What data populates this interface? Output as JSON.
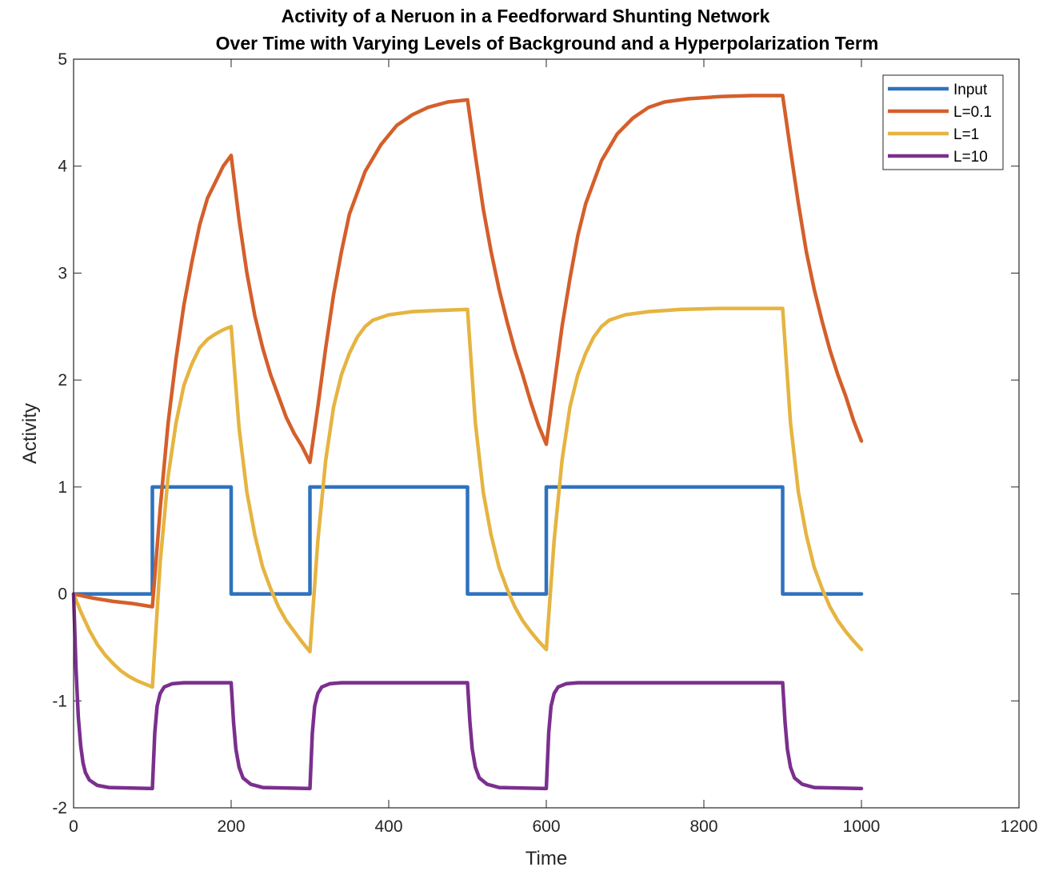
{
  "chart_data": {
    "type": "line",
    "title": "Activity of a Neruon in a Feedforward Shunting Network",
    "subtitle": "Over Time with Varying Levels of Background and a Hyperpolarization Term",
    "xlabel": "Time",
    "ylabel": "Activity",
    "xlim": [
      0,
      1200
    ],
    "ylim": [
      -2,
      5
    ],
    "xticks": [
      0,
      200,
      400,
      600,
      800,
      1000,
      1200
    ],
    "yticks": [
      -2,
      -1,
      0,
      1,
      2,
      3,
      4,
      5
    ],
    "grid": false,
    "legend_position": "top-right",
    "series": [
      {
        "name": "Input",
        "color": "#2e72be",
        "points": [
          [
            0,
            0
          ],
          [
            100,
            0
          ],
          [
            100,
            1
          ],
          [
            200,
            1
          ],
          [
            200,
            0
          ],
          [
            300,
            0
          ],
          [
            300,
            1
          ],
          [
            500,
            1
          ],
          [
            500,
            0
          ],
          [
            600,
            0
          ],
          [
            600,
            1
          ],
          [
            900,
            1
          ],
          [
            900,
            0
          ],
          [
            1000,
            0
          ]
        ]
      },
      {
        "name": "L=0.1",
        "color": "#d45f2b",
        "points": [
          [
            0,
            0
          ],
          [
            25,
            -0.04
          ],
          [
            50,
            -0.07
          ],
          [
            75,
            -0.09
          ],
          [
            100,
            -0.12
          ],
          [
            110,
            0.8
          ],
          [
            120,
            1.6
          ],
          [
            130,
            2.2
          ],
          [
            140,
            2.7
          ],
          [
            150,
            3.1
          ],
          [
            160,
            3.45
          ],
          [
            170,
            3.7
          ],
          [
            180,
            3.85
          ],
          [
            190,
            4.0
          ],
          [
            200,
            4.1
          ],
          [
            210,
            3.5
          ],
          [
            220,
            3.0
          ],
          [
            230,
            2.6
          ],
          [
            240,
            2.3
          ],
          [
            250,
            2.05
          ],
          [
            260,
            1.85
          ],
          [
            270,
            1.65
          ],
          [
            280,
            1.5
          ],
          [
            290,
            1.38
          ],
          [
            300,
            1.23
          ],
          [
            310,
            1.75
          ],
          [
            320,
            2.3
          ],
          [
            330,
            2.8
          ],
          [
            340,
            3.2
          ],
          [
            350,
            3.55
          ],
          [
            370,
            3.95
          ],
          [
            390,
            4.2
          ],
          [
            410,
            4.38
          ],
          [
            430,
            4.48
          ],
          [
            450,
            4.55
          ],
          [
            475,
            4.6
          ],
          [
            500,
            4.62
          ],
          [
            510,
            4.1
          ],
          [
            520,
            3.6
          ],
          [
            530,
            3.2
          ],
          [
            540,
            2.85
          ],
          [
            550,
            2.55
          ],
          [
            560,
            2.28
          ],
          [
            570,
            2.05
          ],
          [
            580,
            1.8
          ],
          [
            590,
            1.58
          ],
          [
            600,
            1.4
          ],
          [
            610,
            1.95
          ],
          [
            620,
            2.5
          ],
          [
            630,
            2.95
          ],
          [
            640,
            3.35
          ],
          [
            650,
            3.65
          ],
          [
            670,
            4.05
          ],
          [
            690,
            4.3
          ],
          [
            710,
            4.45
          ],
          [
            730,
            4.55
          ],
          [
            750,
            4.6
          ],
          [
            780,
            4.63
          ],
          [
            820,
            4.65
          ],
          [
            860,
            4.66
          ],
          [
            900,
            4.66
          ],
          [
            910,
            4.15
          ],
          [
            920,
            3.65
          ],
          [
            930,
            3.2
          ],
          [
            940,
            2.85
          ],
          [
            950,
            2.55
          ],
          [
            960,
            2.28
          ],
          [
            970,
            2.05
          ],
          [
            980,
            1.85
          ],
          [
            990,
            1.62
          ],
          [
            1000,
            1.43
          ]
        ]
      },
      {
        "name": "L=1",
        "color": "#e5b441",
        "points": [
          [
            0,
            0
          ],
          [
            10,
            -0.18
          ],
          [
            20,
            -0.34
          ],
          [
            30,
            -0.47
          ],
          [
            40,
            -0.57
          ],
          [
            50,
            -0.65
          ],
          [
            60,
            -0.72
          ],
          [
            70,
            -0.77
          ],
          [
            80,
            -0.81
          ],
          [
            90,
            -0.84
          ],
          [
            100,
            -0.87
          ],
          [
            110,
            0.3
          ],
          [
            120,
            1.1
          ],
          [
            130,
            1.6
          ],
          [
            140,
            1.95
          ],
          [
            150,
            2.15
          ],
          [
            160,
            2.3
          ],
          [
            170,
            2.38
          ],
          [
            180,
            2.43
          ],
          [
            190,
            2.47
          ],
          [
            200,
            2.5
          ],
          [
            210,
            1.55
          ],
          [
            220,
            0.95
          ],
          [
            230,
            0.55
          ],
          [
            240,
            0.25
          ],
          [
            250,
            0.05
          ],
          [
            260,
            -0.12
          ],
          [
            270,
            -0.25
          ],
          [
            280,
            -0.35
          ],
          [
            290,
            -0.45
          ],
          [
            300,
            -0.54
          ],
          [
            310,
            0.5
          ],
          [
            320,
            1.25
          ],
          [
            330,
            1.75
          ],
          [
            340,
            2.05
          ],
          [
            350,
            2.25
          ],
          [
            360,
            2.4
          ],
          [
            370,
            2.5
          ],
          [
            380,
            2.56
          ],
          [
            400,
            2.61
          ],
          [
            430,
            2.64
          ],
          [
            460,
            2.65
          ],
          [
            500,
            2.66
          ],
          [
            510,
            1.6
          ],
          [
            520,
            0.95
          ],
          [
            530,
            0.55
          ],
          [
            540,
            0.25
          ],
          [
            550,
            0.05
          ],
          [
            560,
            -0.12
          ],
          [
            570,
            -0.25
          ],
          [
            580,
            -0.35
          ],
          [
            590,
            -0.44
          ],
          [
            600,
            -0.52
          ],
          [
            610,
            0.5
          ],
          [
            620,
            1.25
          ],
          [
            630,
            1.75
          ],
          [
            640,
            2.05
          ],
          [
            650,
            2.25
          ],
          [
            660,
            2.4
          ],
          [
            670,
            2.5
          ],
          [
            680,
            2.56
          ],
          [
            700,
            2.61
          ],
          [
            730,
            2.64
          ],
          [
            770,
            2.66
          ],
          [
            820,
            2.67
          ],
          [
            900,
            2.67
          ],
          [
            910,
            1.6
          ],
          [
            920,
            0.95
          ],
          [
            930,
            0.55
          ],
          [
            940,
            0.25
          ],
          [
            950,
            0.05
          ],
          [
            960,
            -0.12
          ],
          [
            970,
            -0.25
          ],
          [
            980,
            -0.35
          ],
          [
            990,
            -0.44
          ],
          [
            1000,
            -0.52
          ]
        ]
      },
      {
        "name": "L=10",
        "color": "#7b2f8e",
        "points": [
          [
            0,
            0
          ],
          [
            3,
            -0.7
          ],
          [
            6,
            -1.15
          ],
          [
            9,
            -1.42
          ],
          [
            12,
            -1.58
          ],
          [
            15,
            -1.67
          ],
          [
            20,
            -1.74
          ],
          [
            30,
            -1.79
          ],
          [
            45,
            -1.81
          ],
          [
            100,
            -1.82
          ],
          [
            103,
            -1.3
          ],
          [
            106,
            -1.05
          ],
          [
            110,
            -0.93
          ],
          [
            115,
            -0.87
          ],
          [
            125,
            -0.84
          ],
          [
            140,
            -0.83
          ],
          [
            200,
            -0.83
          ],
          [
            203,
            -1.2
          ],
          [
            206,
            -1.45
          ],
          [
            210,
            -1.62
          ],
          [
            215,
            -1.72
          ],
          [
            225,
            -1.78
          ],
          [
            240,
            -1.81
          ],
          [
            300,
            -1.82
          ],
          [
            303,
            -1.3
          ],
          [
            306,
            -1.05
          ],
          [
            310,
            -0.93
          ],
          [
            315,
            -0.87
          ],
          [
            325,
            -0.84
          ],
          [
            340,
            -0.83
          ],
          [
            500,
            -0.83
          ],
          [
            503,
            -1.2
          ],
          [
            506,
            -1.45
          ],
          [
            510,
            -1.62
          ],
          [
            515,
            -1.72
          ],
          [
            525,
            -1.78
          ],
          [
            540,
            -1.81
          ],
          [
            600,
            -1.82
          ],
          [
            603,
            -1.3
          ],
          [
            606,
            -1.05
          ],
          [
            610,
            -0.93
          ],
          [
            615,
            -0.87
          ],
          [
            625,
            -0.84
          ],
          [
            640,
            -0.83
          ],
          [
            900,
            -0.83
          ],
          [
            903,
            -1.2
          ],
          [
            906,
            -1.45
          ],
          [
            910,
            -1.62
          ],
          [
            915,
            -1.72
          ],
          [
            925,
            -1.78
          ],
          [
            940,
            -1.81
          ],
          [
            1000,
            -1.82
          ]
        ]
      }
    ]
  }
}
